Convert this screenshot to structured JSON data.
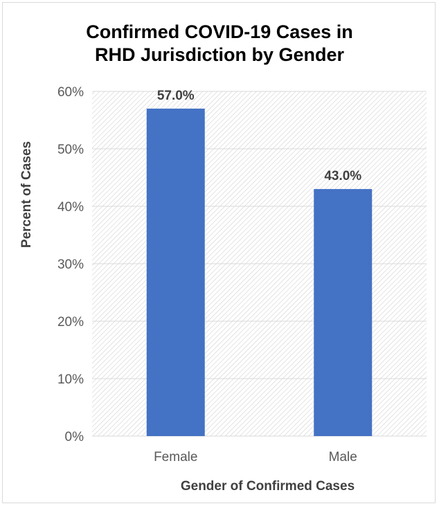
{
  "chart_data": {
    "type": "bar",
    "title": [
      "Confirmed COVID-19 Cases in",
      "RHD Jurisdiction by Gender"
    ],
    "xlabel": "Gender of Confirmed Cases",
    "ylabel": "Percent of Cases",
    "categories": [
      "Female",
      "Male"
    ],
    "values": [
      57.0,
      43.0
    ],
    "data_labels": [
      "57.0%",
      "43.0%"
    ],
    "yticks": [
      0,
      10,
      20,
      30,
      40,
      50,
      60
    ],
    "ytick_labels": [
      "0%",
      "10%",
      "20%",
      "30%",
      "40%",
      "50%",
      "60%"
    ],
    "ylim": [
      0,
      60
    ],
    "grid": true,
    "colors": {
      "bar": "#4472c4",
      "gridline": "#d9d9d9",
      "hatch": "#d0d0d0",
      "axis_text": "#595959",
      "label_text": "#404040"
    }
  }
}
